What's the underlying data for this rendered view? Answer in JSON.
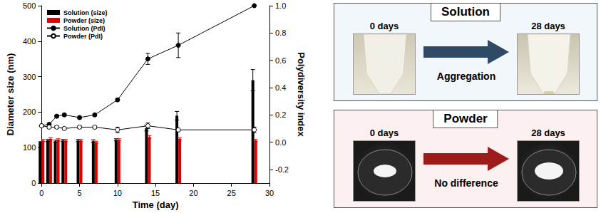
{
  "chart_data": {
    "type": "bar_line",
    "x_label": "Time (day)",
    "y_label": "Diameter size (nm)",
    "y2_label": "Polydiversity index",
    "x": [
      0,
      1,
      2,
      3,
      5,
      7,
      10,
      14,
      18,
      28
    ],
    "xlim": [
      0,
      30
    ],
    "xticks": [
      0,
      5,
      10,
      15,
      20,
      25,
      30
    ],
    "ylim": [
      0,
      500
    ],
    "yticks": [
      0,
      100,
      200,
      300,
      400,
      500
    ],
    "y2lim": [
      -0.3,
      1.0
    ],
    "y2ticks": [
      -0.2,
      {
        "value": 0,
        "label": "0.0"
      },
      0.2,
      0.4,
      0.6,
      0.8,
      {
        "value": 1.0,
        "label": "1.0"
      }
    ],
    "grid": false,
    "legend": "upper left",
    "series": [
      {
        "name": "Solution (size)",
        "type": "bar",
        "color": "#000000",
        "values": [
          118,
          120,
          118,
          120,
          120,
          118,
          122,
          155,
          190,
          290
        ],
        "errors": [
          3,
          3,
          3,
          3,
          3,
          4,
          3,
          8,
          12,
          30
        ]
      },
      {
        "name": "Powder (size)",
        "type": "bar",
        "color": "#e00000",
        "values": [
          120,
          125,
          122,
          120,
          120,
          115,
          122,
          130,
          125,
          120
        ],
        "errors": [
          3,
          3,
          3,
          3,
          3,
          3,
          3,
          4,
          3,
          3
        ]
      },
      {
        "name": "Solution (PdI)",
        "type": "line",
        "axis": "y2",
        "color": "#000000",
        "marker": "circle",
        "line_style": "solid",
        "values": [
          0.12,
          0.13,
          0.19,
          0.2,
          0.18,
          0.2,
          0.31,
          0.61,
          0.71,
          1.0
        ],
        "errors": [
          0.01,
          0.01,
          0.01,
          0.01,
          0.01,
          0.01,
          0.01,
          0.04,
          0.09,
          0
        ]
      },
      {
        "name": "Powder (PdI)",
        "type": "line",
        "axis": "y2",
        "color": "#000000",
        "marker": "open_circle",
        "line_style": "solid",
        "values": [
          0.12,
          0.11,
          0.11,
          0.1,
          0.11,
          0.11,
          0.09,
          0.12,
          0.09,
          0.09
        ],
        "errors": [
          0.01,
          0.01,
          0.01,
          0.01,
          0.01,
          0.01,
          0.02,
          0.02,
          0.01,
          0.02
        ]
      }
    ]
  },
  "panels": [
    {
      "title": "Solution",
      "before": "0 days",
      "after": "28 days",
      "change": "Aggregation"
    },
    {
      "title": "Powder",
      "before": "0 days",
      "after": "28 days",
      "change": "No difference"
    }
  ]
}
